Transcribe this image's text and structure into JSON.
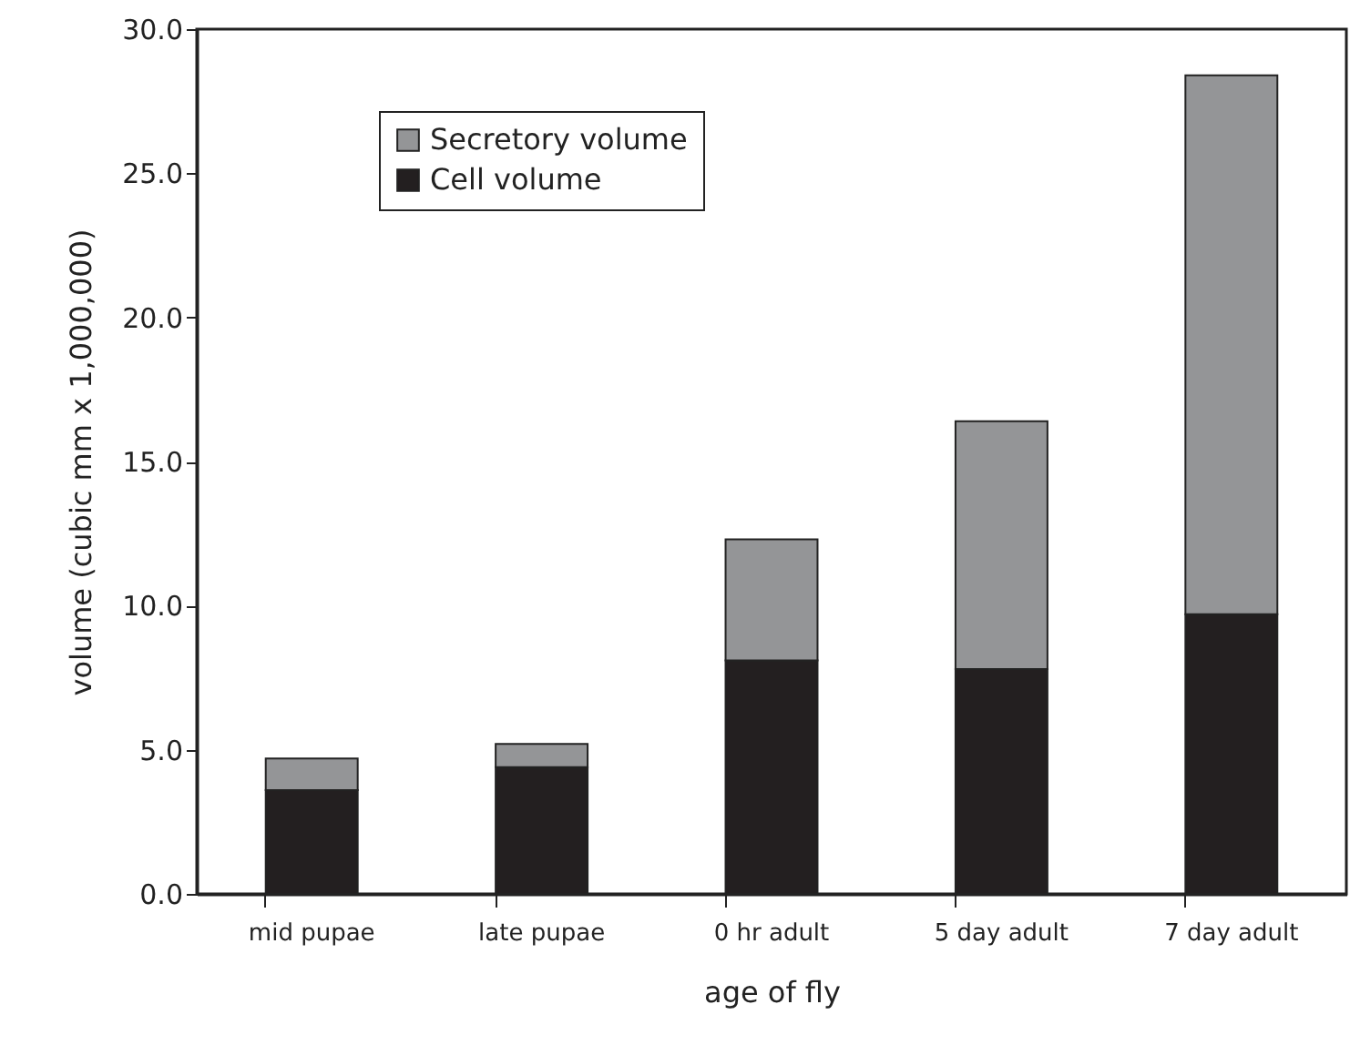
{
  "chart_data": {
    "type": "bar",
    "stacked": true,
    "xlabel": "age of fly",
    "ylabel": "volume (cubic mm x 1,000,000)",
    "categories": [
      "mid pupae",
      "late pupae",
      "0 hr adult",
      "5 day adult",
      "7 day adult"
    ],
    "series": [
      {
        "name": "Cell volume",
        "color": "#231f20",
        "values": [
          3.6,
          4.4,
          8.1,
          7.8,
          9.7
        ]
      },
      {
        "name": "Secretory volume",
        "color": "#949597",
        "values": [
          1.1,
          0.8,
          4.2,
          8.6,
          18.7
        ]
      }
    ],
    "ylim": [
      0,
      30
    ],
    "yticks": [
      {
        "value": 0,
        "label": "0.0"
      },
      {
        "value": 5,
        "label": "5.0"
      },
      {
        "value": 10,
        "label": "10.0"
      },
      {
        "value": 15,
        "label": "15.0"
      },
      {
        "value": 20,
        "label": "20.0"
      },
      {
        "value": 25,
        "label": "25.0"
      },
      {
        "value": 30,
        "label": "30.0"
      }
    ],
    "grid": false,
    "legend": "top left"
  }
}
